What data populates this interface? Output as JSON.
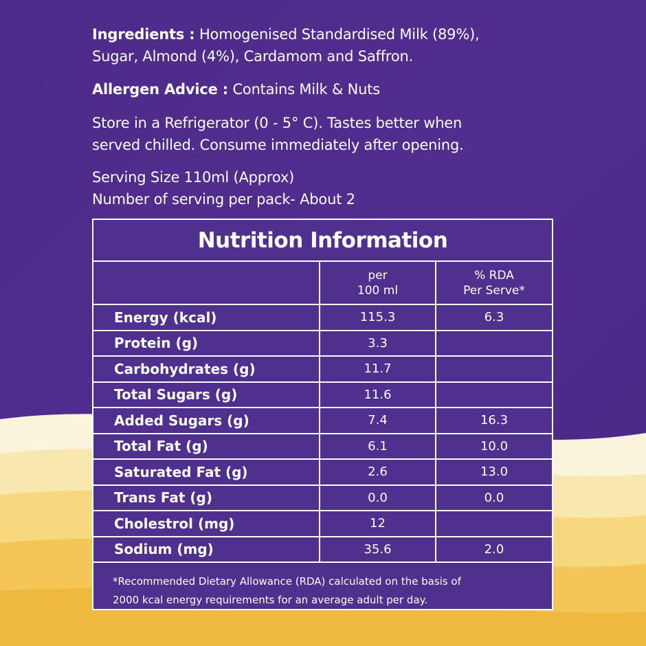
{
  "ingredients": {
    "label": "Ingredients :",
    "line1": "Homogenised Standardised Milk (89%),",
    "line2": "Sugar, Almond (4%), Cardamom and Saffron."
  },
  "allergen": {
    "label": "Allergen Advice :",
    "text": "Contains Milk & Nuts"
  },
  "storage": {
    "line1": "Store in a Refrigerator (0 - 5° C). Tastes better when",
    "line2": "served chilled. Consume immediately after opening."
  },
  "serving": {
    "size": "Serving Size 110ml (Approx)",
    "count": "Number of serving per pack- About 2"
  },
  "nutrition": {
    "title": "Nutrition Information",
    "headers": {
      "col2_line1": "per",
      "col2_line2": "100 ml",
      "col3_line1": "% RDA",
      "col3_line2": "Per Serve*"
    },
    "rows": [
      {
        "name": "Energy (kcal)",
        "per100": "115.3",
        "rda": "6.3"
      },
      {
        "name": "Protein (g)",
        "per100": "3.3",
        "rda": ""
      },
      {
        "name": "Carbohydrates (g)",
        "per100": "11.7",
        "rda": ""
      },
      {
        "name": "Total Sugars (g)",
        "per100": "11.6",
        "rda": ""
      },
      {
        "name": "Added Sugars (g)",
        "per100": "7.4",
        "rda": "16.3"
      },
      {
        "name": "Total Fat (g)",
        "per100": "6.1",
        "rda": "10.0"
      },
      {
        "name": "Saturated Fat (g)",
        "per100": "2.6",
        "rda": "13.0"
      },
      {
        "name": "Trans Fat (g)",
        "per100": "0.0",
        "rda": "0.0"
      },
      {
        "name": "Cholestrol (mg)",
        "per100": "12",
        "rda": ""
      },
      {
        "name": "Sodium (mg)",
        "per100": "35.6",
        "rda": "2.0"
      }
    ],
    "footnote_line1": "*Recommended Dietary Allowance (RDA) calculated on the basis of",
    "footnote_line2": "2000 kcal energy requirements for an average adult per day."
  },
  "colors": {
    "purple_bg": "#4a2a85",
    "table_bg": "#50308f",
    "wave_cream": "#fbf3d8",
    "wave_yellow": "#f6cf68",
    "wave_orange": "#f0b53c"
  }
}
